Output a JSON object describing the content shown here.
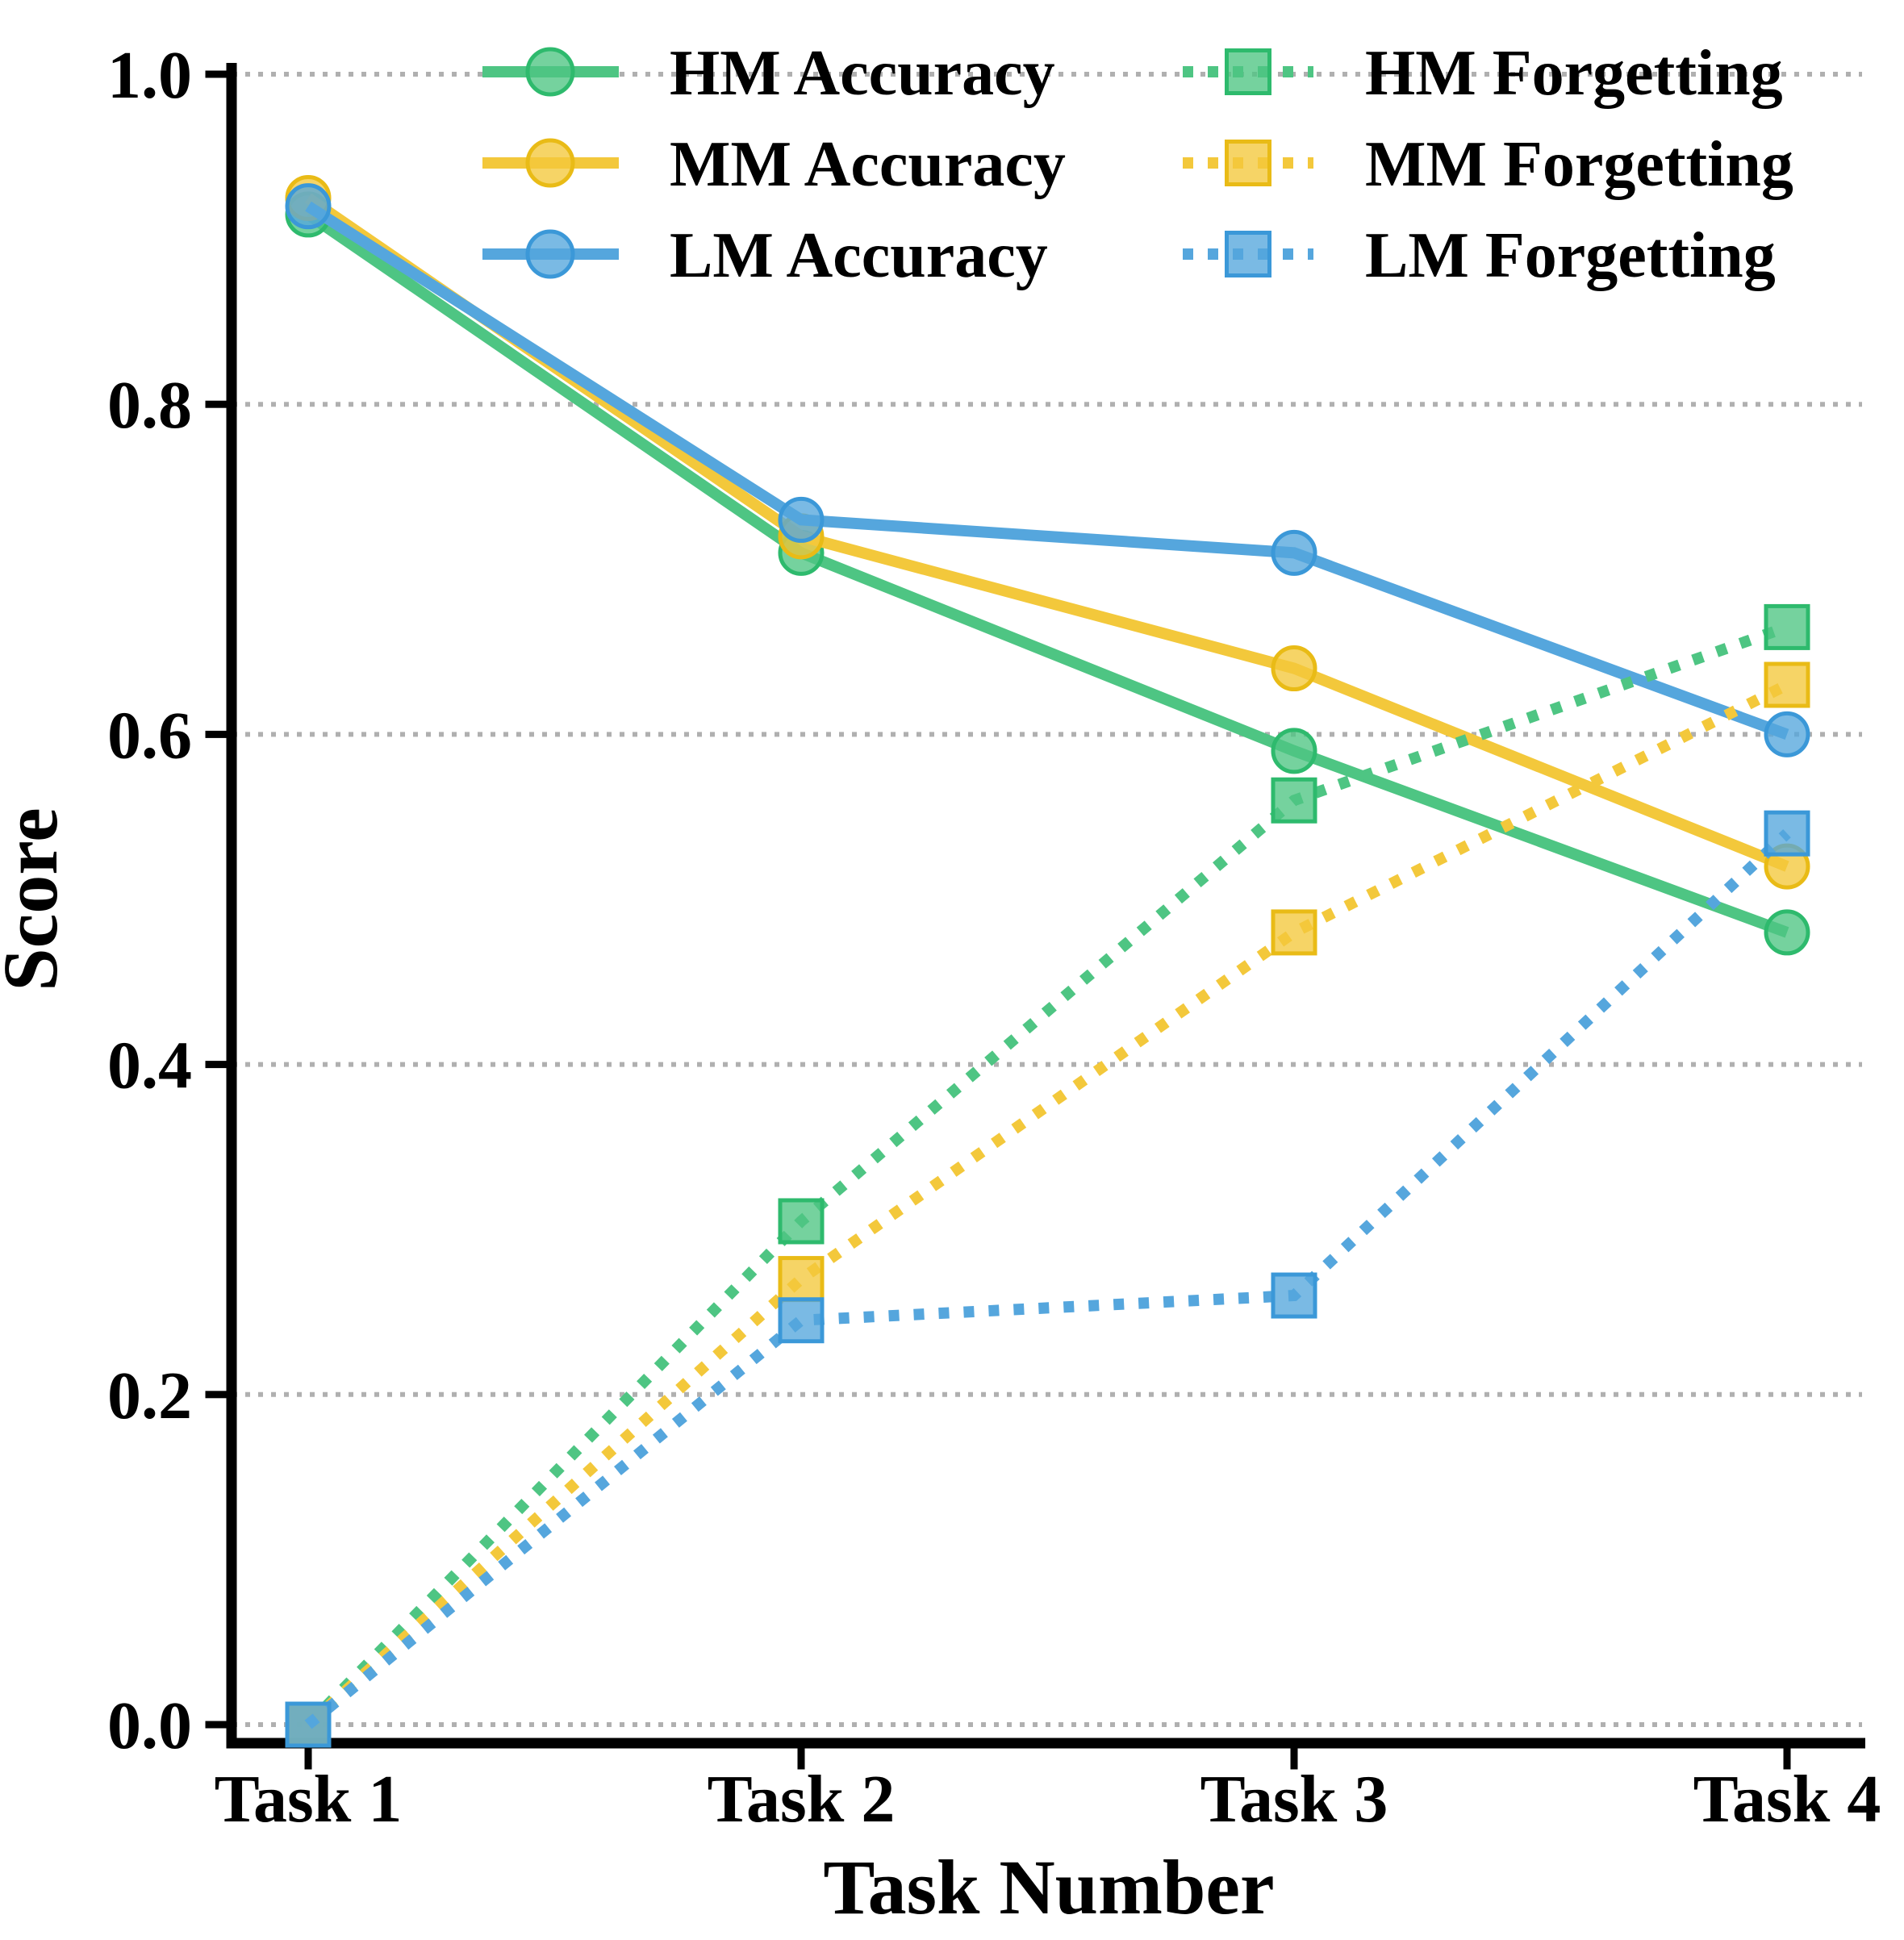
{
  "chart_data": {
    "type": "line",
    "title": "",
    "xlabel": "Task Number",
    "ylabel": "Score",
    "categories": [
      "Task 1",
      "Task 2",
      "Task 3",
      "Task 4"
    ],
    "ylim": [
      0.0,
      1.0
    ],
    "yticks": [
      0.0,
      0.2,
      0.4,
      0.6,
      0.8,
      1.0
    ],
    "ytick_labels": [
      "0.0",
      "0.2",
      "0.4",
      "0.6",
      "0.8",
      "1.0"
    ],
    "grid": "horizontal dotted gridlines",
    "grid_color": "#b0b0b0",
    "legend_position": "top inside plot, two columns, no frame",
    "legend_columns": [
      [
        "HM Accuracy",
        "MM Accuracy",
        "LM Accuracy"
      ],
      [
        "HM Forgetting",
        "MM Forgetting",
        "LM Forgetting"
      ]
    ],
    "series": [
      {
        "name": "HM Accuracy",
        "style": "solid",
        "marker": "circle",
        "color": "#4ec583",
        "edge_color": "#2eba6d",
        "values": [
          0.915,
          0.71,
          0.59,
          0.48
        ]
      },
      {
        "name": "MM Accuracy",
        "style": "solid",
        "marker": "circle",
        "color": "#f3c83b",
        "edge_color": "#e9bb16",
        "values": [
          0.925,
          0.72,
          0.64,
          0.52
        ]
      },
      {
        "name": "LM Accuracy",
        "style": "solid",
        "marker": "circle",
        "color": "#55a6dd",
        "edge_color": "#3b98d8",
        "values": [
          0.92,
          0.73,
          0.71,
          0.6
        ]
      },
      {
        "name": "HM Forgetting",
        "style": "dotted",
        "marker": "square",
        "color": "#4ec583",
        "edge_color": "#2eba6d",
        "values": [
          0.0,
          0.305,
          0.56,
          0.665
        ]
      },
      {
        "name": "MM Forgetting",
        "style": "dotted",
        "marker": "square",
        "color": "#f3c83b",
        "edge_color": "#e9bb16",
        "values": [
          0.0,
          0.27,
          0.48,
          0.63
        ]
      },
      {
        "name": "LM Forgetting",
        "style": "dotted",
        "marker": "square",
        "color": "#55a6dd",
        "edge_color": "#3b98d8",
        "values": [
          0.0,
          0.245,
          0.26,
          0.54
        ]
      }
    ]
  }
}
